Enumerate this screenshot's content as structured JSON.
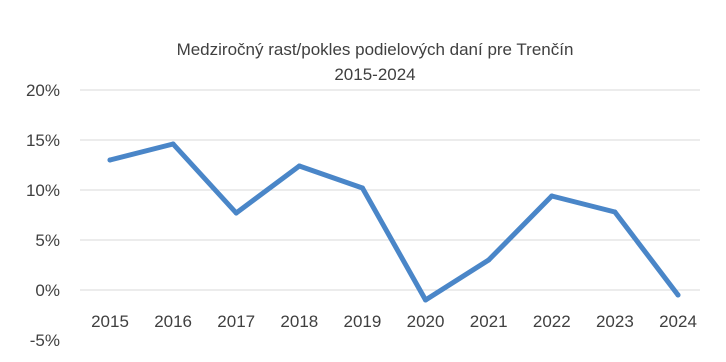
{
  "chart_data": {
    "type": "line",
    "title": "Medziročný rast/pokles  podielových daní pre Trenčín",
    "subtitle": "2015-2024",
    "categories": [
      "2015",
      "2016",
      "2017",
      "2018",
      "2019",
      "2020",
      "2021",
      "2022",
      "2023",
      "2024"
    ],
    "series": [
      {
        "values": [
          13.0,
          14.6,
          7.7,
          12.4,
          10.2,
          -1.0,
          3.0,
          9.4,
          7.8,
          -0.5
        ],
        "color": "#4a86c8"
      }
    ],
    "y_ticks": [
      "-5%",
      "0%",
      "5%",
      "10%",
      "15%",
      "20%"
    ],
    "ylim": [
      -5,
      20
    ],
    "grid": true,
    "legend": "none"
  }
}
